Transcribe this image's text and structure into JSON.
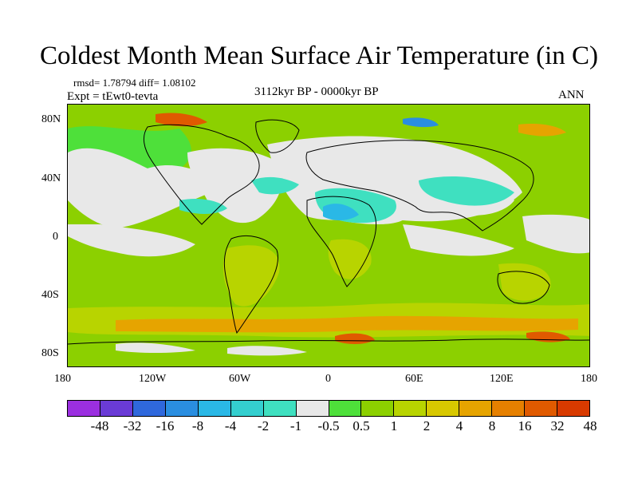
{
  "title": "Coldest Month Mean Surface Air Temperature (in C)",
  "stats": "rmsd= 1.78794 diff= 1.08102",
  "experiment": "Expt = tEwt0-tevta",
  "period": "3112kyr BP - 0000kyr BP",
  "season": "ANN",
  "lat_ticks": [
    "80N",
    "40N",
    "0",
    "40S",
    "80S"
  ],
  "lon_ticks": [
    "180",
    "120W",
    "60W",
    "0",
    "60E",
    "120E",
    "180"
  ],
  "colorbar": {
    "labels": [
      "-48",
      "-32",
      "-16",
      "-8",
      "-4",
      "-2",
      "-1",
      "-0.5",
      "0.5",
      "1",
      "2",
      "4",
      "8",
      "16",
      "32",
      "48"
    ],
    "colors": [
      "#9b2fe0",
      "#6a3bd6",
      "#2f68dc",
      "#2a8ee0",
      "#2ab8e6",
      "#34cfcf",
      "#3fe0c0",
      "#e8e8e8",
      "#4ee03a",
      "#8cd000",
      "#b8d400",
      "#d8c800",
      "#e6a400",
      "#e68000",
      "#e05a00",
      "#d83a00"
    ]
  },
  "map_colors": {
    "background": "#8cd000",
    "near_zero": "#e8e8e8",
    "cool_light": "#3fe0c0",
    "cool": "#2ab8e6",
    "cool_strong": "#2a8ee0",
    "warm_weak": "#4ee03a",
    "warm": "#b8d400",
    "warm_strong": "#e6a400",
    "warm_hot": "#e05a00",
    "coast": "#000000"
  }
}
